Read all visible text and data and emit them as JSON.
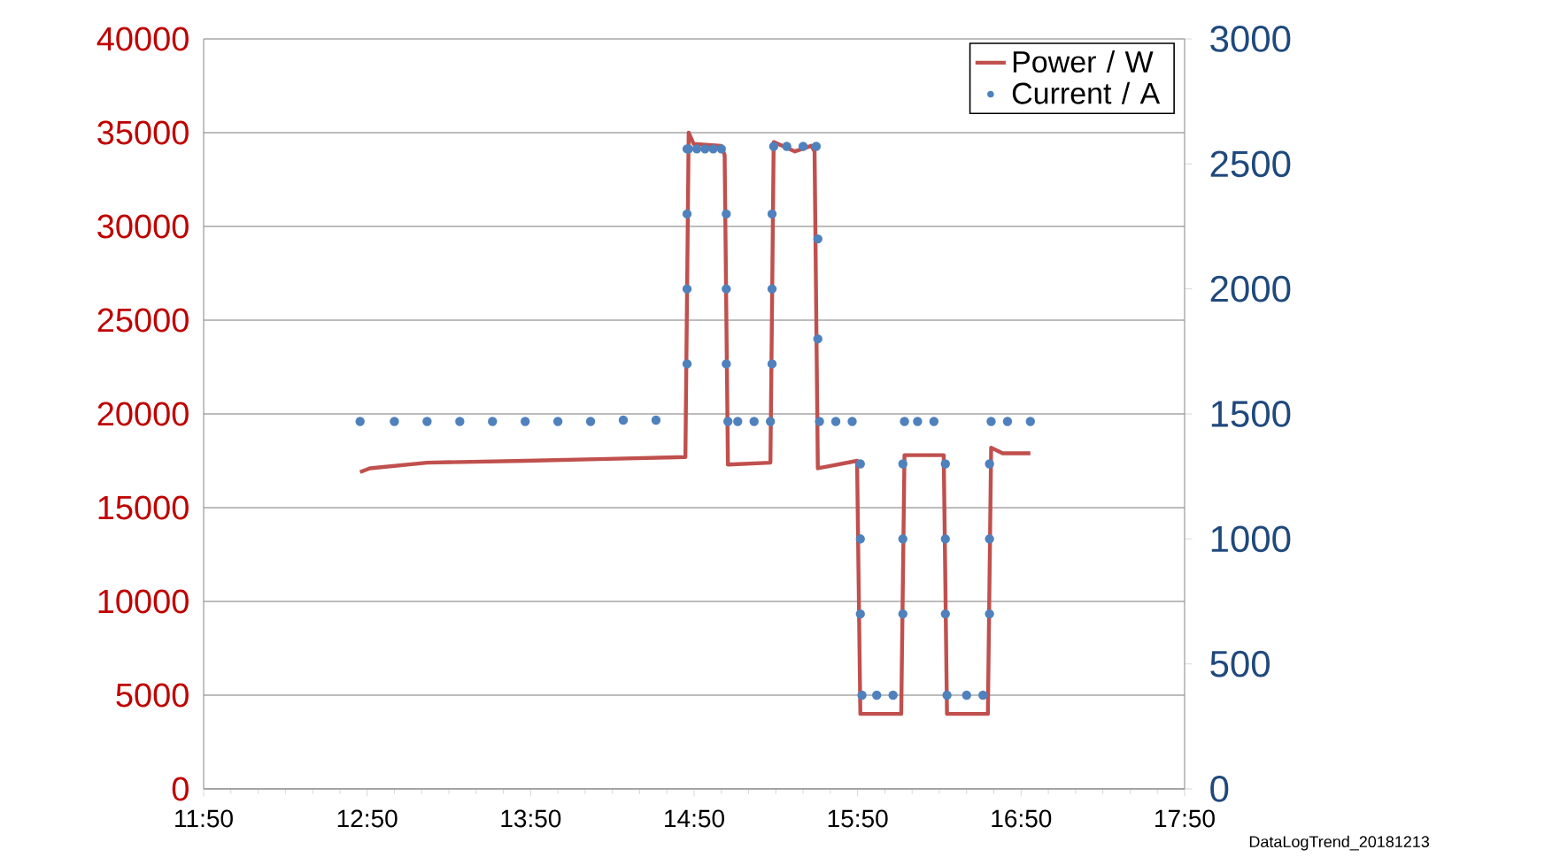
{
  "chart_data": {
    "type": "line",
    "xlim": [
      11.8333,
      17.8333
    ],
    "xticks": [
      {
        "value": 11.8333,
        "label": "11:50"
      },
      {
        "value": 12.8333,
        "label": "12:50"
      },
      {
        "value": 13.8333,
        "label": "13:50"
      },
      {
        "value": 14.8333,
        "label": "14:50"
      },
      {
        "value": 15.8333,
        "label": "15:50"
      },
      {
        "value": 16.8333,
        "label": "16:50"
      },
      {
        "value": 17.8333,
        "label": "17:50"
      }
    ],
    "ylim": [
      0,
      40000
    ],
    "yticks": [
      0,
      5000,
      10000,
      15000,
      20000,
      25000,
      30000,
      35000,
      40000
    ],
    "y2lim": [
      0,
      3000
    ],
    "y2ticks": [
      0,
      500,
      1000,
      1500,
      2000,
      2500,
      3000
    ],
    "grid": "y",
    "legend": "top right",
    "annotations": [
      "DataLogTrend_20181213"
    ],
    "series": [
      {
        "name": "Power / W",
        "color": "#c0504d",
        "x": [
          12.79,
          12.85,
          13.2,
          13.8,
          14.3,
          14.78,
          14.8,
          14.83,
          15.0,
          15.02,
          15.04,
          15.3,
          15.32,
          15.45,
          15.55,
          15.57,
          15.59,
          15.65,
          15.83,
          15.85,
          16.1,
          16.12,
          16.36,
          16.38,
          16.63,
          16.65,
          16.72,
          16.89
        ],
        "values": [
          16900,
          17100,
          17400,
          17500,
          17600,
          17700,
          35000,
          34400,
          34300,
          33800,
          17300,
          17400,
          34500,
          34000,
          34300,
          34000,
          17100,
          17200,
          17500,
          4000,
          4000,
          17800,
          17800,
          4000,
          4000,
          18200,
          17900,
          17900
        ]
      },
      {
        "name": "Current / A",
        "type": "scatter",
        "axis": "y2",
        "marker": "circle",
        "color": "#4f81bd",
        "x": [
          12.79,
          13.0,
          13.2,
          13.4,
          13.6,
          13.8,
          14.0,
          14.2,
          14.4,
          14.6,
          14.79,
          14.79,
          14.79,
          14.79,
          14.8,
          14.85,
          14.9,
          14.95,
          15.0,
          15.03,
          15.03,
          15.03,
          15.04,
          15.1,
          15.2,
          15.3,
          15.31,
          15.31,
          15.31,
          15.32,
          15.4,
          15.5,
          15.58,
          15.59,
          15.59,
          15.6,
          15.7,
          15.8,
          15.85,
          15.85,
          15.85,
          15.86,
          15.95,
          16.05,
          16.11,
          16.11,
          16.11,
          16.12,
          16.2,
          16.3,
          16.37,
          16.37,
          16.37,
          16.38,
          16.5,
          16.6,
          16.64,
          16.64,
          16.64,
          16.65,
          16.75,
          16.89
        ],
        "values": [
          1470,
          1470,
          1470,
          1470,
          1470,
          1470,
          1470,
          1470,
          1475,
          1475,
          1700,
          2000,
          2300,
          2560,
          2560,
          2560,
          2560,
          2560,
          2560,
          2300,
          2000,
          1700,
          1470,
          1470,
          1470,
          1470,
          1700,
          2000,
          2300,
          2570,
          2570,
          2570,
          2570,
          2200,
          1800,
          1470,
          1470,
          1470,
          1300,
          1000,
          700,
          375,
          375,
          375,
          700,
          1000,
          1300,
          1470,
          1470,
          1470,
          1300,
          1000,
          700,
          375,
          375,
          375,
          700,
          1000,
          1300,
          1470,
          1470,
          1470
        ]
      }
    ]
  }
}
